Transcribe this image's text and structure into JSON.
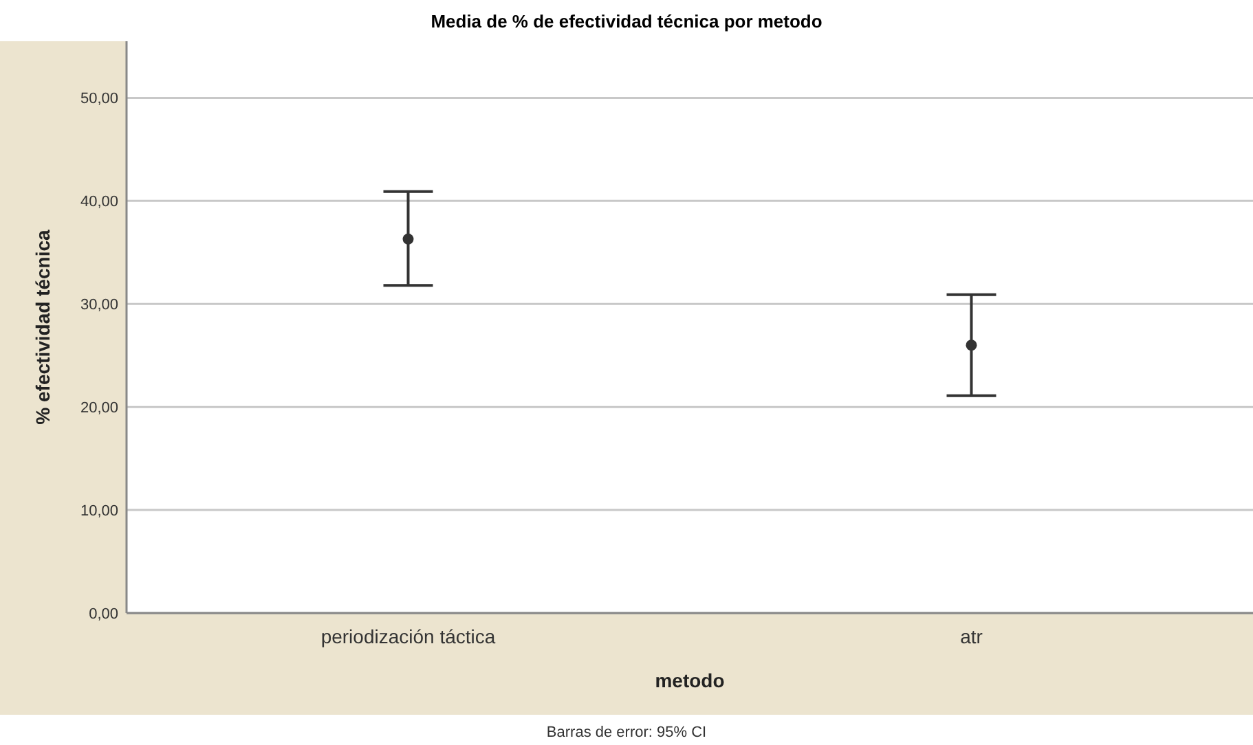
{
  "chart_data": {
    "type": "scatter",
    "title": "Media de % de efectividad técnica por metodo",
    "xlabel": "metodo",
    "ylabel": "% efectividad técnica",
    "categories": [
      "periodización táctica",
      "atr"
    ],
    "series": [
      {
        "color": "#333333",
        "values": [
          36.3,
          26.0
        ],
        "errors": [
          [
            31.8,
            40.9
          ],
          [
            21.1,
            30.9
          ]
        ]
      }
    ],
    "ylim": [
      0,
      55.5
    ],
    "yticks": [
      {
        "value": 0,
        "label": "0,00"
      },
      {
        "value": 10,
        "label": "10,00"
      },
      {
        "value": 20,
        "label": "20,00"
      },
      {
        "value": 30,
        "label": "30,00"
      },
      {
        "value": 40,
        "label": "40,00"
      },
      {
        "value": 50,
        "label": "50,00"
      }
    ],
    "grid": "y",
    "marker": "circle",
    "annotations": [
      "Barras de error: 95% CI"
    ]
  }
}
